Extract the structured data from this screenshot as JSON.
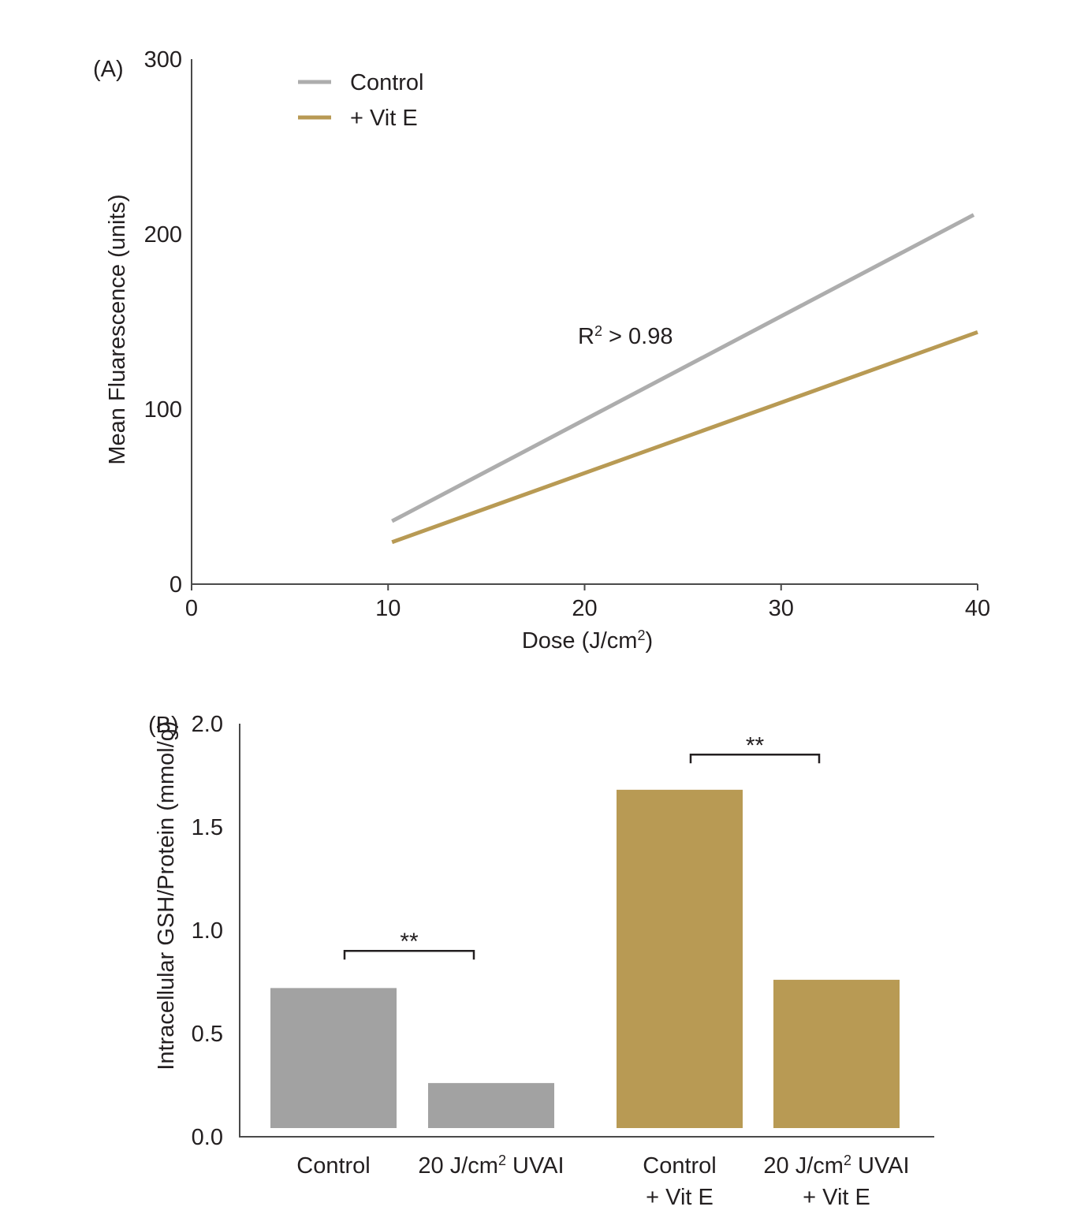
{
  "colors": {
    "control": "#a2a2a2",
    "vitE": "#b89a54",
    "line_control": "#adadad",
    "axis": "#4a4a4a"
  },
  "chart_data": [
    {
      "type": "line",
      "panel_label": "(A)",
      "xlabel": "Dose (J/cm²)",
      "ylabel": "Mean Fluarescence (units)",
      "xlim": [
        0,
        40
      ],
      "ylim": [
        0,
        300
      ],
      "x_ticks": [
        "0",
        "10",
        "20",
        "30",
        "40"
      ],
      "y_ticks": [
        "0",
        "100",
        "200",
        "300"
      ],
      "annotation": "R² > 0.98",
      "legend_position": "top-left",
      "series": [
        {
          "name": "Control",
          "color": "#adadad",
          "points": [
            [
              10.2,
              36
            ],
            [
              39.8,
              211
            ]
          ]
        },
        {
          "name": "+ Vit E",
          "color": "#b89a54",
          "points": [
            [
              10.2,
              24
            ],
            [
              40,
              144
            ]
          ]
        }
      ]
    },
    {
      "type": "bar",
      "panel_label": "(B)",
      "xlabel": "",
      "ylabel": "Intracellular GSH/Protein (mmol/g)",
      "ylim": [
        0,
        2.0
      ],
      "y_ticks": [
        "0.0",
        "0.5",
        "1.0",
        "1.5",
        "2.0"
      ],
      "categories": [
        {
          "line1": "Control",
          "line2": "",
          "value": 0.72,
          "color": "#a2a2a2"
        },
        {
          "line1": "20 J/cm² UVAI",
          "line2": "",
          "value": 0.26,
          "color": "#a2a2a2"
        },
        {
          "line1": "Control",
          "line2": "+ Vit E",
          "value": 1.68,
          "color": "#b89a54"
        },
        {
          "line1": "20 J/cm² UVAI",
          "line2": "+ Vit E",
          "value": 0.76,
          "color": "#b89a54"
        }
      ],
      "significance": [
        {
          "from": 0,
          "to": 1,
          "label": "**",
          "level": 0.9
        },
        {
          "from": 2,
          "to": 3,
          "label": "**",
          "level": 1.85
        }
      ]
    }
  ]
}
